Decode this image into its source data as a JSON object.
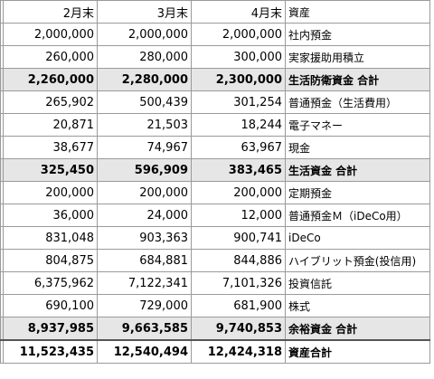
{
  "columns": [
    "2月末",
    "3月末",
    "4月末",
    "資産"
  ],
  "rows": [
    {
      "type": "item",
      "values": [
        "2,000,000",
        "2,000,000",
        "2,000,000"
      ],
      "label": "社内預金"
    },
    {
      "type": "item",
      "values": [
        "260,000",
        "280,000",
        "300,000"
      ],
      "label": "実家援助用積立"
    },
    {
      "type": "subtotal",
      "values": [
        "2,260,000",
        "2,280,000",
        "2,300,000"
      ],
      "label": "生活防衛資金 合計"
    },
    {
      "type": "item",
      "values": [
        "265,902",
        "500,439",
        "301,254"
      ],
      "label": "普通預金（生活費用）"
    },
    {
      "type": "item",
      "values": [
        "20,871",
        "21,503",
        "18,244"
      ],
      "label": "電子マネー"
    },
    {
      "type": "item",
      "values": [
        "38,677",
        "74,967",
        "63,967"
      ],
      "label": "現金"
    },
    {
      "type": "subtotal",
      "values": [
        "325,450",
        "596,909",
        "383,465"
      ],
      "label": "生活資金 合計"
    },
    {
      "type": "item",
      "values": [
        "200,000",
        "200,000",
        "200,000"
      ],
      "label": "定期預金"
    },
    {
      "type": "item",
      "values": [
        "36,000",
        "24,000",
        "12,000"
      ],
      "label": "普通預金Ｍ（iDeCo用）"
    },
    {
      "type": "item",
      "values": [
        "831,048",
        "903,363",
        "900,741"
      ],
      "label": "iDeCo"
    },
    {
      "type": "item",
      "values": [
        "804,875",
        "684,881",
        "844,886"
      ],
      "label": "ハイブリット預金(投信用)"
    },
    {
      "type": "item",
      "values": [
        "6,375,962",
        "7,122,341",
        "7,101,326"
      ],
      "label": "投資信託"
    },
    {
      "type": "item",
      "values": [
        "690,100",
        "729,000",
        "681,900"
      ],
      "label": "株式"
    },
    {
      "type": "subtotal",
      "values": [
        "8,937,985",
        "9,663,585",
        "9,740,853"
      ],
      "label": "余裕資金 合計"
    },
    {
      "type": "total",
      "values": [
        "11,523,435",
        "12,540,494",
        "12,424,318"
      ],
      "label": "資産合計"
    }
  ]
}
